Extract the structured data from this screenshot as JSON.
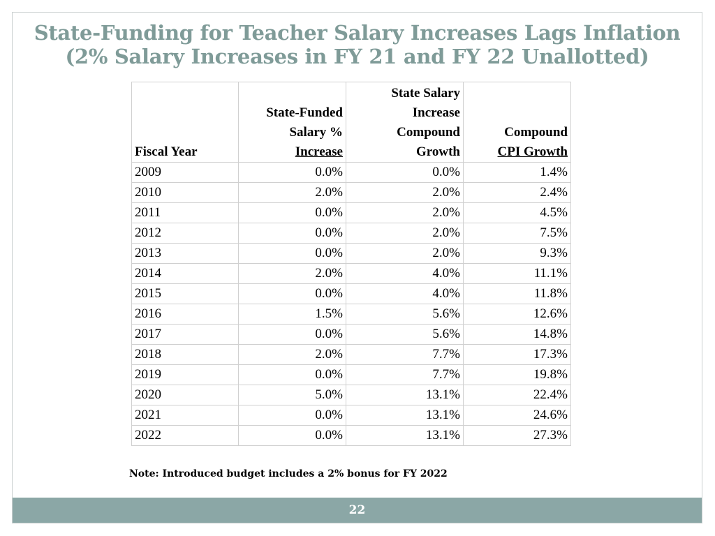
{
  "title": {
    "line1": "State-Funding for Teacher Salary Increases Lags Inflation",
    "line2": "(2% Salary Increases in FY 21 and FY 22 Unallotted)"
  },
  "table": {
    "headers": {
      "fiscal_year": "Fiscal Year",
      "state_funded_l1": "State-Funded",
      "state_funded_l2": "Salary %",
      "state_funded_l3": "Increase",
      "compound_l1": "State Salary",
      "compound_l2": "Increase",
      "compound_l3": "Compound",
      "compound_l4": "Growth",
      "cpi_l1": "Compound",
      "cpi_l2": "CPI Growth"
    },
    "rows": [
      {
        "year": "2009",
        "funded": "0.0%",
        "compound": "0.0%",
        "cpi": "1.4%"
      },
      {
        "year": "2010",
        "funded": "2.0%",
        "compound": "2.0%",
        "cpi": "2.4%"
      },
      {
        "year": "2011",
        "funded": "0.0%",
        "compound": "2.0%",
        "cpi": "4.5%"
      },
      {
        "year": "2012",
        "funded": "0.0%",
        "compound": "2.0%",
        "cpi": "7.5%"
      },
      {
        "year": "2013",
        "funded": "0.0%",
        "compound": "2.0%",
        "cpi": "9.3%"
      },
      {
        "year": "2014",
        "funded": "2.0%",
        "compound": "4.0%",
        "cpi": "11.1%"
      },
      {
        "year": "2015",
        "funded": "0.0%",
        "compound": "4.0%",
        "cpi": "11.8%"
      },
      {
        "year": "2016",
        "funded": "1.5%",
        "compound": "5.6%",
        "cpi": "12.6%"
      },
      {
        "year": "2017",
        "funded": "0.0%",
        "compound": "5.6%",
        "cpi": "14.8%"
      },
      {
        "year": "2018",
        "funded": "2.0%",
        "compound": "7.7%",
        "cpi": "17.3%"
      },
      {
        "year": "2019",
        "funded": "0.0%",
        "compound": "7.7%",
        "cpi": "19.8%"
      },
      {
        "year": "2020",
        "funded": "5.0%",
        "compound": "13.1%",
        "cpi": "22.4%"
      },
      {
        "year": "2021",
        "funded": "0.0%",
        "compound": "13.1%",
        "cpi": "24.6%"
      },
      {
        "year": "2022",
        "funded": "0.0%",
        "compound": "13.1%",
        "cpi": "27.3%"
      }
    ]
  },
  "note": "Note: Introduced budget includes a 2% bonus for FY 2022",
  "footer": {
    "page_number": "22"
  },
  "colors": {
    "title": "#7f9b98",
    "footer_bar": "#8ba7a6"
  }
}
